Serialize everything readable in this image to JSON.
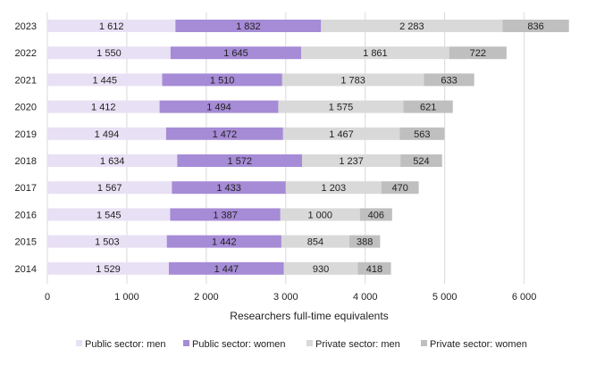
{
  "chart_data": {
    "type": "bar",
    "orientation": "horizontal",
    "stacked": true,
    "title": "",
    "xlabel": "Researchers full-time equivalents",
    "ylabel": "",
    "xlim": [
      0,
      6600
    ],
    "xticks": [
      0,
      1000,
      2000,
      3000,
      4000,
      5000,
      6000
    ],
    "grid": "vertical",
    "legend_position": "bottom",
    "categories": [
      "2023",
      "2022",
      "2021",
      "2020",
      "2019",
      "2018",
      "2017",
      "2016",
      "2015",
      "2014"
    ],
    "series": [
      {
        "name": "Public sector: men",
        "color": "#e8e0f4",
        "values": [
          1612,
          1550,
          1445,
          1412,
          1494,
          1634,
          1567,
          1545,
          1503,
          1529
        ]
      },
      {
        "name": "Public sector: women",
        "color": "#a68bd6",
        "values": [
          1832,
          1645,
          1510,
          1494,
          1472,
          1572,
          1433,
          1387,
          1442,
          1447
        ]
      },
      {
        "name": "Private sector: men",
        "color": "#d9d9d9",
        "values": [
          2283,
          1861,
          1783,
          1575,
          1467,
          1237,
          1203,
          1000,
          854,
          930
        ]
      },
      {
        "name": "Private sector: women",
        "color": "#bfbfbf",
        "values": [
          836,
          722,
          633,
          621,
          563,
          524,
          470,
          406,
          388,
          418
        ]
      }
    ]
  }
}
